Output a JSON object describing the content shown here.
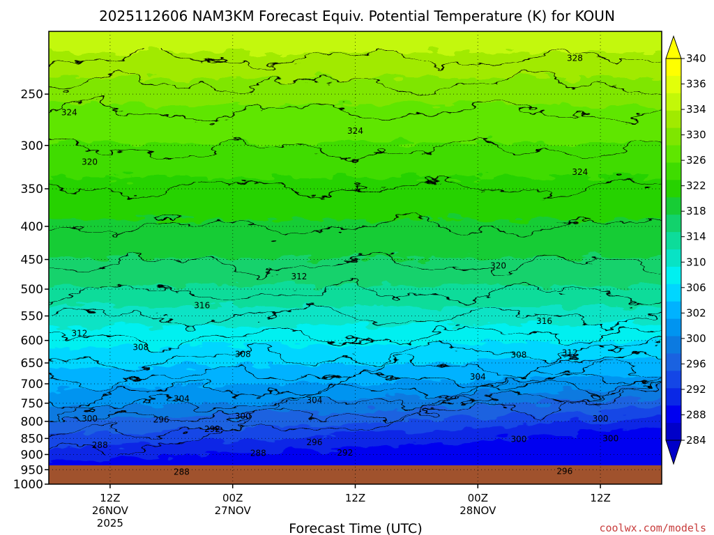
{
  "chart_data": {
    "type": "contour",
    "title": "2025112606 NAM3KM Forecast Equiv. Potential Temperature (K) for KOUN",
    "xlabel": "Forecast Time (UTC)",
    "ylabel": "",
    "credit": "coolwx.com/models",
    "y_axis": {
      "scale": "log-pressure",
      "range": [
        1000,
        200
      ],
      "ticks": [
        250,
        300,
        350,
        400,
        450,
        500,
        550,
        600,
        650,
        700,
        750,
        800,
        850,
        900,
        950,
        1000
      ]
    },
    "x_axis": {
      "range_hours": [
        0,
        60
      ],
      "ticks": [
        {
          "hour": 6,
          "line1": "12Z",
          "line2": "26NOV",
          "line3": "2025"
        },
        {
          "hour": 18,
          "line1": "00Z",
          "line2": "27NOV",
          "line3": ""
        },
        {
          "hour": 30,
          "line1": "12Z",
          "line2": "",
          "line3": ""
        },
        {
          "hour": 42,
          "line1": "00Z",
          "line2": "28NOV",
          "line3": ""
        },
        {
          "hour": 54,
          "line1": "12Z",
          "line2": "",
          "line3": ""
        }
      ]
    },
    "grid": "dotted",
    "colorbar": {
      "placement": "right",
      "labels": [
        340,
        336,
        334,
        330,
        326,
        322,
        318,
        314,
        310,
        306,
        302,
        300,
        296,
        292,
        288,
        284
      ],
      "colors": [
        "#ffff00",
        "#e2ff0a",
        "#c3f808",
        "#a1ea00",
        "#7fe600",
        "#5fe600",
        "#3fdc00",
        "#27d200",
        "#17cc35",
        "#12d26c",
        "#0ddc9a",
        "#08e3c5",
        "#00f0f0",
        "#00d6ff",
        "#00b2ff",
        "#0094f0",
        "#0c7ae0",
        "#1a62e0",
        "#1446e6",
        "#0a28e6",
        "#0000f0",
        "#0000c8"
      ]
    },
    "contour_labels": [
      {
        "value": "328",
        "hour": 51.5,
        "p": 220
      },
      {
        "value": "324",
        "hour": 2.0,
        "p": 267
      },
      {
        "value": "324",
        "hour": 30.0,
        "p": 285
      },
      {
        "value": "324",
        "hour": 52.0,
        "p": 330
      },
      {
        "value": "320",
        "hour": 4.0,
        "p": 318
      },
      {
        "value": "320",
        "hour": 44.0,
        "p": 460
      },
      {
        "value": "316",
        "hour": 15.0,
        "p": 530
      },
      {
        "value": "316",
        "hour": 48.5,
        "p": 560
      },
      {
        "value": "312",
        "hour": 3.0,
        "p": 585
      },
      {
        "value": "312",
        "hour": 24.5,
        "p": 478
      },
      {
        "value": "312",
        "hour": 51.0,
        "p": 627
      },
      {
        "value": "308",
        "hour": 9.0,
        "p": 615
      },
      {
        "value": "308",
        "hour": 19.0,
        "p": 630
      },
      {
        "value": "308",
        "hour": 46.0,
        "p": 632
      },
      {
        "value": "304",
        "hour": 13.0,
        "p": 738
      },
      {
        "value": "304",
        "hour": 26.0,
        "p": 742
      },
      {
        "value": "304",
        "hour": 42.0,
        "p": 683
      },
      {
        "value": "300",
        "hour": 4.0,
        "p": 792
      },
      {
        "value": "300",
        "hour": 19.0,
        "p": 786
      },
      {
        "value": "300",
        "hour": 46.0,
        "p": 852
      },
      {
        "value": "300",
        "hour": 54.0,
        "p": 792
      },
      {
        "value": "300",
        "hour": 55.0,
        "p": 850
      },
      {
        "value": "296",
        "hour": 11.0,
        "p": 795
      },
      {
        "value": "296",
        "hour": 26.0,
        "p": 862
      },
      {
        "value": "296",
        "hour": 50.5,
        "p": 955
      },
      {
        "value": "292",
        "hour": 16.0,
        "p": 822
      },
      {
        "value": "292",
        "hour": 29.0,
        "p": 895
      },
      {
        "value": "288",
        "hour": 5.0,
        "p": 870
      },
      {
        "value": "288",
        "hour": 20.5,
        "p": 896
      },
      {
        "value": "288",
        "hour": 13.0,
        "p": 958
      }
    ]
  }
}
